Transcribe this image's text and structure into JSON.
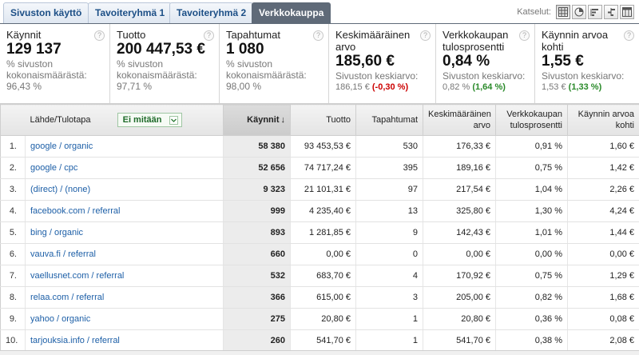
{
  "tabs": [
    {
      "label": "Sivuston käyttö",
      "active": false
    },
    {
      "label": "Tavoiteryhmä 1",
      "active": false
    },
    {
      "label": "Tavoiteryhmä 2",
      "active": false
    },
    {
      "label": "Verkkokauppa",
      "active": true
    }
  ],
  "views": {
    "label": "Katselut:",
    "buttons": [
      "table-view-icon",
      "pie-view-icon",
      "performance-view-icon",
      "comparison-view-icon",
      "pivot-view-icon"
    ],
    "active_index": 0
  },
  "scorecards": [
    {
      "title": "Käynnit",
      "value": "129 137",
      "line1": "% sivuston",
      "line2": "kokonaismäärästä:",
      "line3": "96,43 %"
    },
    {
      "title": "Tuotto",
      "value": "200 447,53 €",
      "line1": "% sivuston",
      "line2": "kokonaismäärästä:",
      "line3": "97,71 %"
    },
    {
      "title": "Tapahtumat",
      "value": "1 080",
      "line1": "% sivuston",
      "line2": "kokonaismäärästä:",
      "line3": "98,00 %"
    },
    {
      "title": "Keskimääräinen arvo",
      "value": "185,60 €",
      "line1": "Sivuston keskiarvo:",
      "avg": "186,15 €",
      "delta": "(-0,30 %)",
      "delta_sign": "neg"
    },
    {
      "title": "Verkkokaupan tulosprosentti",
      "value": "0,84 %",
      "line1": "Sivuston keskiarvo:",
      "avg": "0,82 %",
      "delta": "(1,64 %)",
      "delta_sign": "pos"
    },
    {
      "title": "Käynnin arvoa kohti",
      "value": "1,55 €",
      "line1": "Sivuston keskiarvo:",
      "avg": "1,53 €",
      "delta": "(1,33 %)",
      "delta_sign": "pos"
    }
  ],
  "table": {
    "headers": {
      "dimension": "Lähde/Tulotapa",
      "secondary": "Ei mitään",
      "visits": "Käynnit",
      "sort_arrow": "↓",
      "revenue": "Tuotto",
      "transactions": "Tapahtumat",
      "avg_value": "Keskimääräinen arvo",
      "conversion": "Verkkokaupan tulosprosentti",
      "per_visit": "Käynnin arvoa kohti"
    },
    "rows": [
      {
        "idx": "1.",
        "source": "google / organic",
        "visits": "58 380",
        "revenue": "93 453,53 €",
        "transactions": "530",
        "avg_value": "176,33 €",
        "conversion": "0,91 %",
        "per_visit": "1,60 €"
      },
      {
        "idx": "2.",
        "source": "google / cpc",
        "visits": "52 656",
        "revenue": "74 717,24 €",
        "transactions": "395",
        "avg_value": "189,16 €",
        "conversion": "0,75 %",
        "per_visit": "1,42 €"
      },
      {
        "idx": "3.",
        "source": "(direct) / (none)",
        "visits": "9 323",
        "revenue": "21 101,31 €",
        "transactions": "97",
        "avg_value": "217,54 €",
        "conversion": "1,04 %",
        "per_visit": "2,26 €"
      },
      {
        "idx": "4.",
        "source": "facebook.com / referral",
        "visits": "999",
        "revenue": "4 235,40 €",
        "transactions": "13",
        "avg_value": "325,80 €",
        "conversion": "1,30 %",
        "per_visit": "4,24 €"
      },
      {
        "idx": "5.",
        "source": "bing / organic",
        "visits": "893",
        "revenue": "1 281,85 €",
        "transactions": "9",
        "avg_value": "142,43 €",
        "conversion": "1,01 %",
        "per_visit": "1,44 €"
      },
      {
        "idx": "6.",
        "source": "vauva.fi / referral",
        "visits": "660",
        "revenue": "0,00 €",
        "transactions": "0",
        "avg_value": "0,00 €",
        "conversion": "0,00 %",
        "per_visit": "0,00 €"
      },
      {
        "idx": "7.",
        "source": "vaellusnet.com / referral",
        "visits": "532",
        "revenue": "683,70 €",
        "transactions": "4",
        "avg_value": "170,92 €",
        "conversion": "0,75 %",
        "per_visit": "1,29 €"
      },
      {
        "idx": "8.",
        "source": "relaa.com / referral",
        "visits": "366",
        "revenue": "615,00 €",
        "transactions": "3",
        "avg_value": "205,00 €",
        "conversion": "0,82 %",
        "per_visit": "1,68 €"
      },
      {
        "idx": "9.",
        "source": "yahoo / organic",
        "visits": "275",
        "revenue": "20,80 €",
        "transactions": "1",
        "avg_value": "20,80 €",
        "conversion": "0,36 %",
        "per_visit": "0,08 €"
      },
      {
        "idx": "10.",
        "source": "tarjouksia.info / referral",
        "visits": "260",
        "revenue": "541,70 €",
        "transactions": "1",
        "avg_value": "541,70 €",
        "conversion": "0,38 %",
        "per_visit": "2,08 €"
      }
    ]
  }
}
